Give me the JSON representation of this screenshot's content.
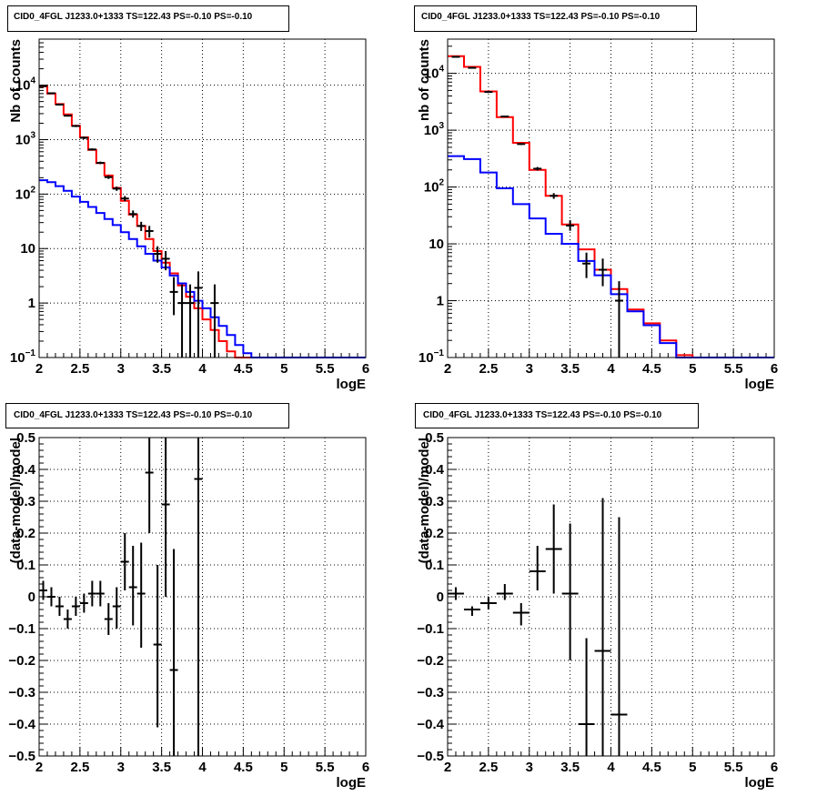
{
  "chart_data": [
    {
      "type": "line",
      "title": "CID0_4FGL J1233.0+1333 TS=122.43 PS=-0.10 PS=-0.10",
      "xlabel": "logE",
      "ylabel": "Nb of counts",
      "xlim": [
        2,
        6
      ],
      "ylim": [
        0.1,
        70000
      ],
      "log_y": true,
      "grid": true,
      "x_ticks": [
        "2",
        "2.5",
        "3",
        "3.5",
        "4",
        "4.5",
        "5",
        "5.5",
        "6"
      ],
      "y_ticks": [
        {
          "v": 0.1,
          "label": "10",
          "sup": "−1"
        },
        {
          "v": 1,
          "label": "1",
          "sup": ""
        },
        {
          "v": 10,
          "label": "10",
          "sup": ""
        },
        {
          "v": 100,
          "label": "10",
          "sup": "2"
        },
        {
          "v": 1000,
          "label": "10",
          "sup": "3"
        },
        {
          "v": 10000,
          "label": "10",
          "sup": "4"
        }
      ],
      "bin_edges": [
        2,
        2.1,
        2.2,
        2.3,
        2.4,
        2.5,
        2.6,
        2.7,
        2.8,
        2.9,
        3.0,
        3.1,
        3.2,
        3.3,
        3.4,
        3.5,
        3.6,
        3.7,
        3.8,
        3.9,
        4.0,
        4.1,
        4.2,
        4.3,
        4.4,
        4.5,
        4.6,
        4.7,
        4.8,
        4.9,
        5.0,
        5.1,
        5.2,
        5.3,
        5.4,
        5.5,
        5.6,
        5.7,
        5.8,
        5.9,
        6.0
      ],
      "series": [
        {
          "color": "#ff0000",
          "values": [
            9500,
            7000,
            4500,
            2900,
            1800,
            1100,
            650,
            370,
            220,
            130,
            75,
            42,
            26,
            15,
            9,
            5.5,
            3.5,
            2.1,
            1.3,
            0.8,
            0.5,
            0.32,
            0.2,
            0.13,
            0.1,
            0.1,
            0.1,
            0.1,
            0.1,
            0.1,
            0.1,
            0.1,
            0.1,
            0.1,
            0.1,
            0.1,
            0.1,
            0.1,
            0.1,
            0.1
          ]
        },
        {
          "color": "#0000ff",
          "values": [
            180,
            165,
            140,
            115,
            90,
            72,
            58,
            45,
            35,
            27,
            20,
            15,
            11,
            8,
            6,
            4.5,
            3.2,
            2.3,
            1.6,
            1.1,
            0.8,
            0.55,
            0.38,
            0.26,
            0.17,
            0.12,
            0.1,
            0.1,
            0.1,
            0.1,
            0.1,
            0.1,
            0.1,
            0.1,
            0.1,
            0.1,
            0.1,
            0.1,
            0.1,
            0.1
          ]
        }
      ],
      "points": [
        {
          "x": 2.05,
          "y": 9600,
          "ylo": 9400,
          "yhi": 9800
        },
        {
          "x": 2.15,
          "y": 7100,
          "ylo": 6900,
          "yhi": 7300
        },
        {
          "x": 2.25,
          "y": 4400,
          "ylo": 4250,
          "yhi": 4550
        },
        {
          "x": 2.35,
          "y": 2750,
          "ylo": 2650,
          "yhi": 2850
        },
        {
          "x": 2.45,
          "y": 1780,
          "ylo": 1700,
          "yhi": 1860
        },
        {
          "x": 2.55,
          "y": 1080,
          "ylo": 1020,
          "yhi": 1140
        },
        {
          "x": 2.65,
          "y": 660,
          "ylo": 630,
          "yhi": 690
        },
        {
          "x": 2.75,
          "y": 375,
          "ylo": 355,
          "yhi": 395
        },
        {
          "x": 2.85,
          "y": 205,
          "ylo": 190,
          "yhi": 220
        },
        {
          "x": 2.95,
          "y": 126,
          "ylo": 115,
          "yhi": 137
        },
        {
          "x": 3.05,
          "y": 83,
          "ylo": 74,
          "yhi": 92
        },
        {
          "x": 3.15,
          "y": 43,
          "ylo": 37,
          "yhi": 50
        },
        {
          "x": 3.25,
          "y": 26,
          "ylo": 21,
          "yhi": 31
        },
        {
          "x": 3.35,
          "y": 21,
          "ylo": 16,
          "yhi": 26
        },
        {
          "x": 3.45,
          "y": 8,
          "ylo": 5.5,
          "yhi": 11
        },
        {
          "x": 3.55,
          "y": 6.5,
          "ylo": 4,
          "yhi": 9
        },
        {
          "x": 3.65,
          "y": 1.6,
          "ylo": 0.6,
          "yhi": 3
        },
        {
          "x": 3.75,
          "y": 1,
          "ylo": 0.1,
          "yhi": 2.2
        },
        {
          "x": 3.85,
          "y": 1,
          "ylo": 0.1,
          "yhi": 2.2
        },
        {
          "x": 3.95,
          "y": 1.9,
          "ylo": 0.1,
          "yhi": 3.8
        },
        {
          "x": 4.15,
          "y": 1,
          "ylo": 0.1,
          "yhi": 2.2
        }
      ]
    },
    {
      "type": "line",
      "title": "CID0_4FGL J1233.0+1333 TS=122.43 PS=-0.10 PS=-0.10",
      "xlabel": "logE",
      "ylabel": "nb of counts",
      "xlim": [
        2,
        6
      ],
      "ylim": [
        0.1,
        40000
      ],
      "log_y": true,
      "grid": true,
      "x_ticks": [
        "2",
        "2.5",
        "3",
        "3.5",
        "4",
        "4.5",
        "5",
        "5.5",
        "6"
      ],
      "y_ticks": [
        {
          "v": 0.1,
          "label": "10",
          "sup": "−1"
        },
        {
          "v": 1,
          "label": "1",
          "sup": ""
        },
        {
          "v": 10,
          "label": "10",
          "sup": ""
        },
        {
          "v": 100,
          "label": "10",
          "sup": "2"
        },
        {
          "v": 1000,
          "label": "10",
          "sup": "3"
        },
        {
          "v": 10000,
          "label": "10",
          "sup": "4"
        }
      ],
      "bin_edges": [
        2,
        2.2,
        2.4,
        2.6,
        2.8,
        3.0,
        3.2,
        3.4,
        3.6,
        3.8,
        4.0,
        4.2,
        4.4,
        4.6,
        4.8,
        5.0,
        5.2,
        5.4,
        5.6,
        5.8,
        6.0
      ],
      "series": [
        {
          "color": "#ff0000",
          "values": [
            20000,
            13000,
            4800,
            1700,
            600,
            200,
            70,
            22,
            8,
            3.5,
            1.6,
            0.7,
            0.4,
            0.2,
            0.11,
            0.1,
            0.1,
            0.1,
            0.1,
            0.1
          ]
        },
        {
          "color": "#0000ff",
          "values": [
            350,
            310,
            180,
            95,
            50,
            28,
            15,
            10,
            5,
            2.8,
            1.3,
            0.65,
            0.37,
            0.18,
            0.1,
            0.1,
            0.1,
            0.1,
            0.1,
            0.1
          ]
        }
      ],
      "points": [
        {
          "x": 2.1,
          "y": 19500,
          "ylo": 19200,
          "yhi": 19800
        },
        {
          "x": 2.3,
          "y": 12500,
          "ylo": 12300,
          "yhi": 12700
        },
        {
          "x": 2.5,
          "y": 4700,
          "ylo": 4600,
          "yhi": 4800
        },
        {
          "x": 2.7,
          "y": 1740,
          "ylo": 1700,
          "yhi": 1780
        },
        {
          "x": 2.9,
          "y": 570,
          "ylo": 550,
          "yhi": 590
        },
        {
          "x": 3.1,
          "y": 210,
          "ylo": 195,
          "yhi": 225
        },
        {
          "x": 3.3,
          "y": 70,
          "ylo": 62,
          "yhi": 78
        },
        {
          "x": 3.5,
          "y": 21,
          "ylo": 17,
          "yhi": 26
        },
        {
          "x": 3.7,
          "y": 4.5,
          "ylo": 2.5,
          "yhi": 7
        },
        {
          "x": 3.9,
          "y": 3.5,
          "ylo": 1.8,
          "yhi": 5.5
        },
        {
          "x": 4.1,
          "y": 1,
          "ylo": 0.1,
          "yhi": 2.2
        }
      ]
    },
    {
      "type": "scatter",
      "title": "CID0_4FGL J1233.0+1333 TS=122.43 PS=-0.10 PS=-0.10",
      "xlabel": "logE",
      "ylabel": "(data-model)/model",
      "xlim": [
        2,
        6
      ],
      "ylim": [
        -0.5,
        0.5
      ],
      "log_y": false,
      "grid": true,
      "x_ticks": [
        "2",
        "2.5",
        "3",
        "3.5",
        "4",
        "4.5",
        "5",
        "5.5",
        "6"
      ],
      "y_ticks": [
        {
          "v": -0.5,
          "label": "−0.5",
          "sup": ""
        },
        {
          "v": -0.4,
          "label": "−0.4",
          "sup": ""
        },
        {
          "v": -0.3,
          "label": "−0.3",
          "sup": ""
        },
        {
          "v": -0.2,
          "label": "−0.2",
          "sup": ""
        },
        {
          "v": -0.1,
          "label": "−0.1",
          "sup": ""
        },
        {
          "v": 0,
          "label": "0",
          "sup": ""
        },
        {
          "v": 0.1,
          "label": "0.1",
          "sup": ""
        },
        {
          "v": 0.2,
          "label": "0.2",
          "sup": ""
        },
        {
          "v": 0.3,
          "label": "0.3",
          "sup": ""
        },
        {
          "v": 0.4,
          "label": "0.4",
          "sup": ""
        },
        {
          "v": 0.5,
          "label": "0.5",
          "sup": ""
        }
      ],
      "xerr": 0.05,
      "points": [
        {
          "x": 2.05,
          "y": 0.02,
          "ylo": -0.01,
          "yhi": 0.05
        },
        {
          "x": 2.15,
          "y": 0.0,
          "ylo": -0.03,
          "yhi": 0.03
        },
        {
          "x": 2.25,
          "y": -0.03,
          "ylo": -0.06,
          "yhi": 0.0
        },
        {
          "x": 2.35,
          "y": -0.07,
          "ylo": -0.1,
          "yhi": -0.04
        },
        {
          "x": 2.45,
          "y": -0.03,
          "ylo": -0.06,
          "yhi": 0.0
        },
        {
          "x": 2.55,
          "y": -0.02,
          "ylo": -0.05,
          "yhi": 0.01
        },
        {
          "x": 2.65,
          "y": 0.01,
          "ylo": -0.03,
          "yhi": 0.05
        },
        {
          "x": 2.75,
          "y": 0.01,
          "ylo": -0.03,
          "yhi": 0.05
        },
        {
          "x": 2.85,
          "y": -0.07,
          "ylo": -0.12,
          "yhi": -0.02
        },
        {
          "x": 2.95,
          "y": -0.03,
          "ylo": -0.1,
          "yhi": 0.03
        },
        {
          "x": 3.05,
          "y": 0.11,
          "ylo": 0.02,
          "yhi": 0.2
        },
        {
          "x": 3.15,
          "y": 0.03,
          "ylo": -0.09,
          "yhi": 0.16
        },
        {
          "x": 3.25,
          "y": 0.01,
          "ylo": -0.16,
          "yhi": 0.17
        },
        {
          "x": 3.35,
          "y": 0.39,
          "ylo": 0.2,
          "yhi": 0.5
        },
        {
          "x": 3.45,
          "y": -0.15,
          "ylo": -0.41,
          "yhi": 0.1
        },
        {
          "x": 3.55,
          "y": 0.29,
          "ylo": 0.0,
          "yhi": 0.5
        },
        {
          "x": 3.65,
          "y": -0.23,
          "ylo": -0.5,
          "yhi": 0.15
        },
        {
          "x": 3.95,
          "y": 0.37,
          "ylo": -0.5,
          "yhi": 0.5
        }
      ]
    },
    {
      "type": "scatter",
      "title": "CID0_4FGL J1233.0+1333 TS=122.43 PS=-0.10 PS=-0.10",
      "xlabel": "logE",
      "ylabel": "(data-model)/model",
      "xlim": [
        2,
        6
      ],
      "ylim": [
        -0.5,
        0.5
      ],
      "log_y": false,
      "grid": true,
      "x_ticks": [
        "2",
        "2.5",
        "3",
        "3.5",
        "4",
        "4.5",
        "5",
        "5.5",
        "6"
      ],
      "y_ticks": [
        {
          "v": -0.5,
          "label": "−0.5",
          "sup": ""
        },
        {
          "v": -0.4,
          "label": "−0.4",
          "sup": ""
        },
        {
          "v": -0.3,
          "label": "−0.3",
          "sup": ""
        },
        {
          "v": -0.2,
          "label": "−0.2",
          "sup": ""
        },
        {
          "v": -0.1,
          "label": "−0.1",
          "sup": ""
        },
        {
          "v": 0,
          "label": "0",
          "sup": ""
        },
        {
          "v": 0.1,
          "label": "0.1",
          "sup": ""
        },
        {
          "v": 0.2,
          "label": "0.2",
          "sup": ""
        },
        {
          "v": 0.3,
          "label": "0.3",
          "sup": ""
        },
        {
          "v": 0.4,
          "label": "0.4",
          "sup": ""
        },
        {
          "v": 0.5,
          "label": "0.5",
          "sup": ""
        }
      ],
      "xerr": 0.1,
      "points": [
        {
          "x": 2.1,
          "y": 0.01,
          "ylo": -0.01,
          "yhi": 0.03
        },
        {
          "x": 2.3,
          "y": -0.04,
          "ylo": -0.06,
          "yhi": -0.03
        },
        {
          "x": 2.5,
          "y": -0.02,
          "ylo": -0.04,
          "yhi": 0.0
        },
        {
          "x": 2.7,
          "y": 0.01,
          "ylo": -0.01,
          "yhi": 0.04
        },
        {
          "x": 2.9,
          "y": -0.05,
          "ylo": -0.09,
          "yhi": -0.02
        },
        {
          "x": 3.1,
          "y": 0.08,
          "ylo": 0.02,
          "yhi": 0.16
        },
        {
          "x": 3.3,
          "y": 0.15,
          "ylo": 0.01,
          "yhi": 0.29
        },
        {
          "x": 3.5,
          "y": 0.01,
          "ylo": -0.2,
          "yhi": 0.23
        },
        {
          "x": 3.7,
          "y": -0.4,
          "ylo": -0.5,
          "yhi": -0.13
        },
        {
          "x": 3.9,
          "y": -0.17,
          "ylo": -0.5,
          "yhi": 0.31
        },
        {
          "x": 4.1,
          "y": -0.37,
          "ylo": -0.5,
          "yhi": 0.25
        }
      ]
    }
  ]
}
